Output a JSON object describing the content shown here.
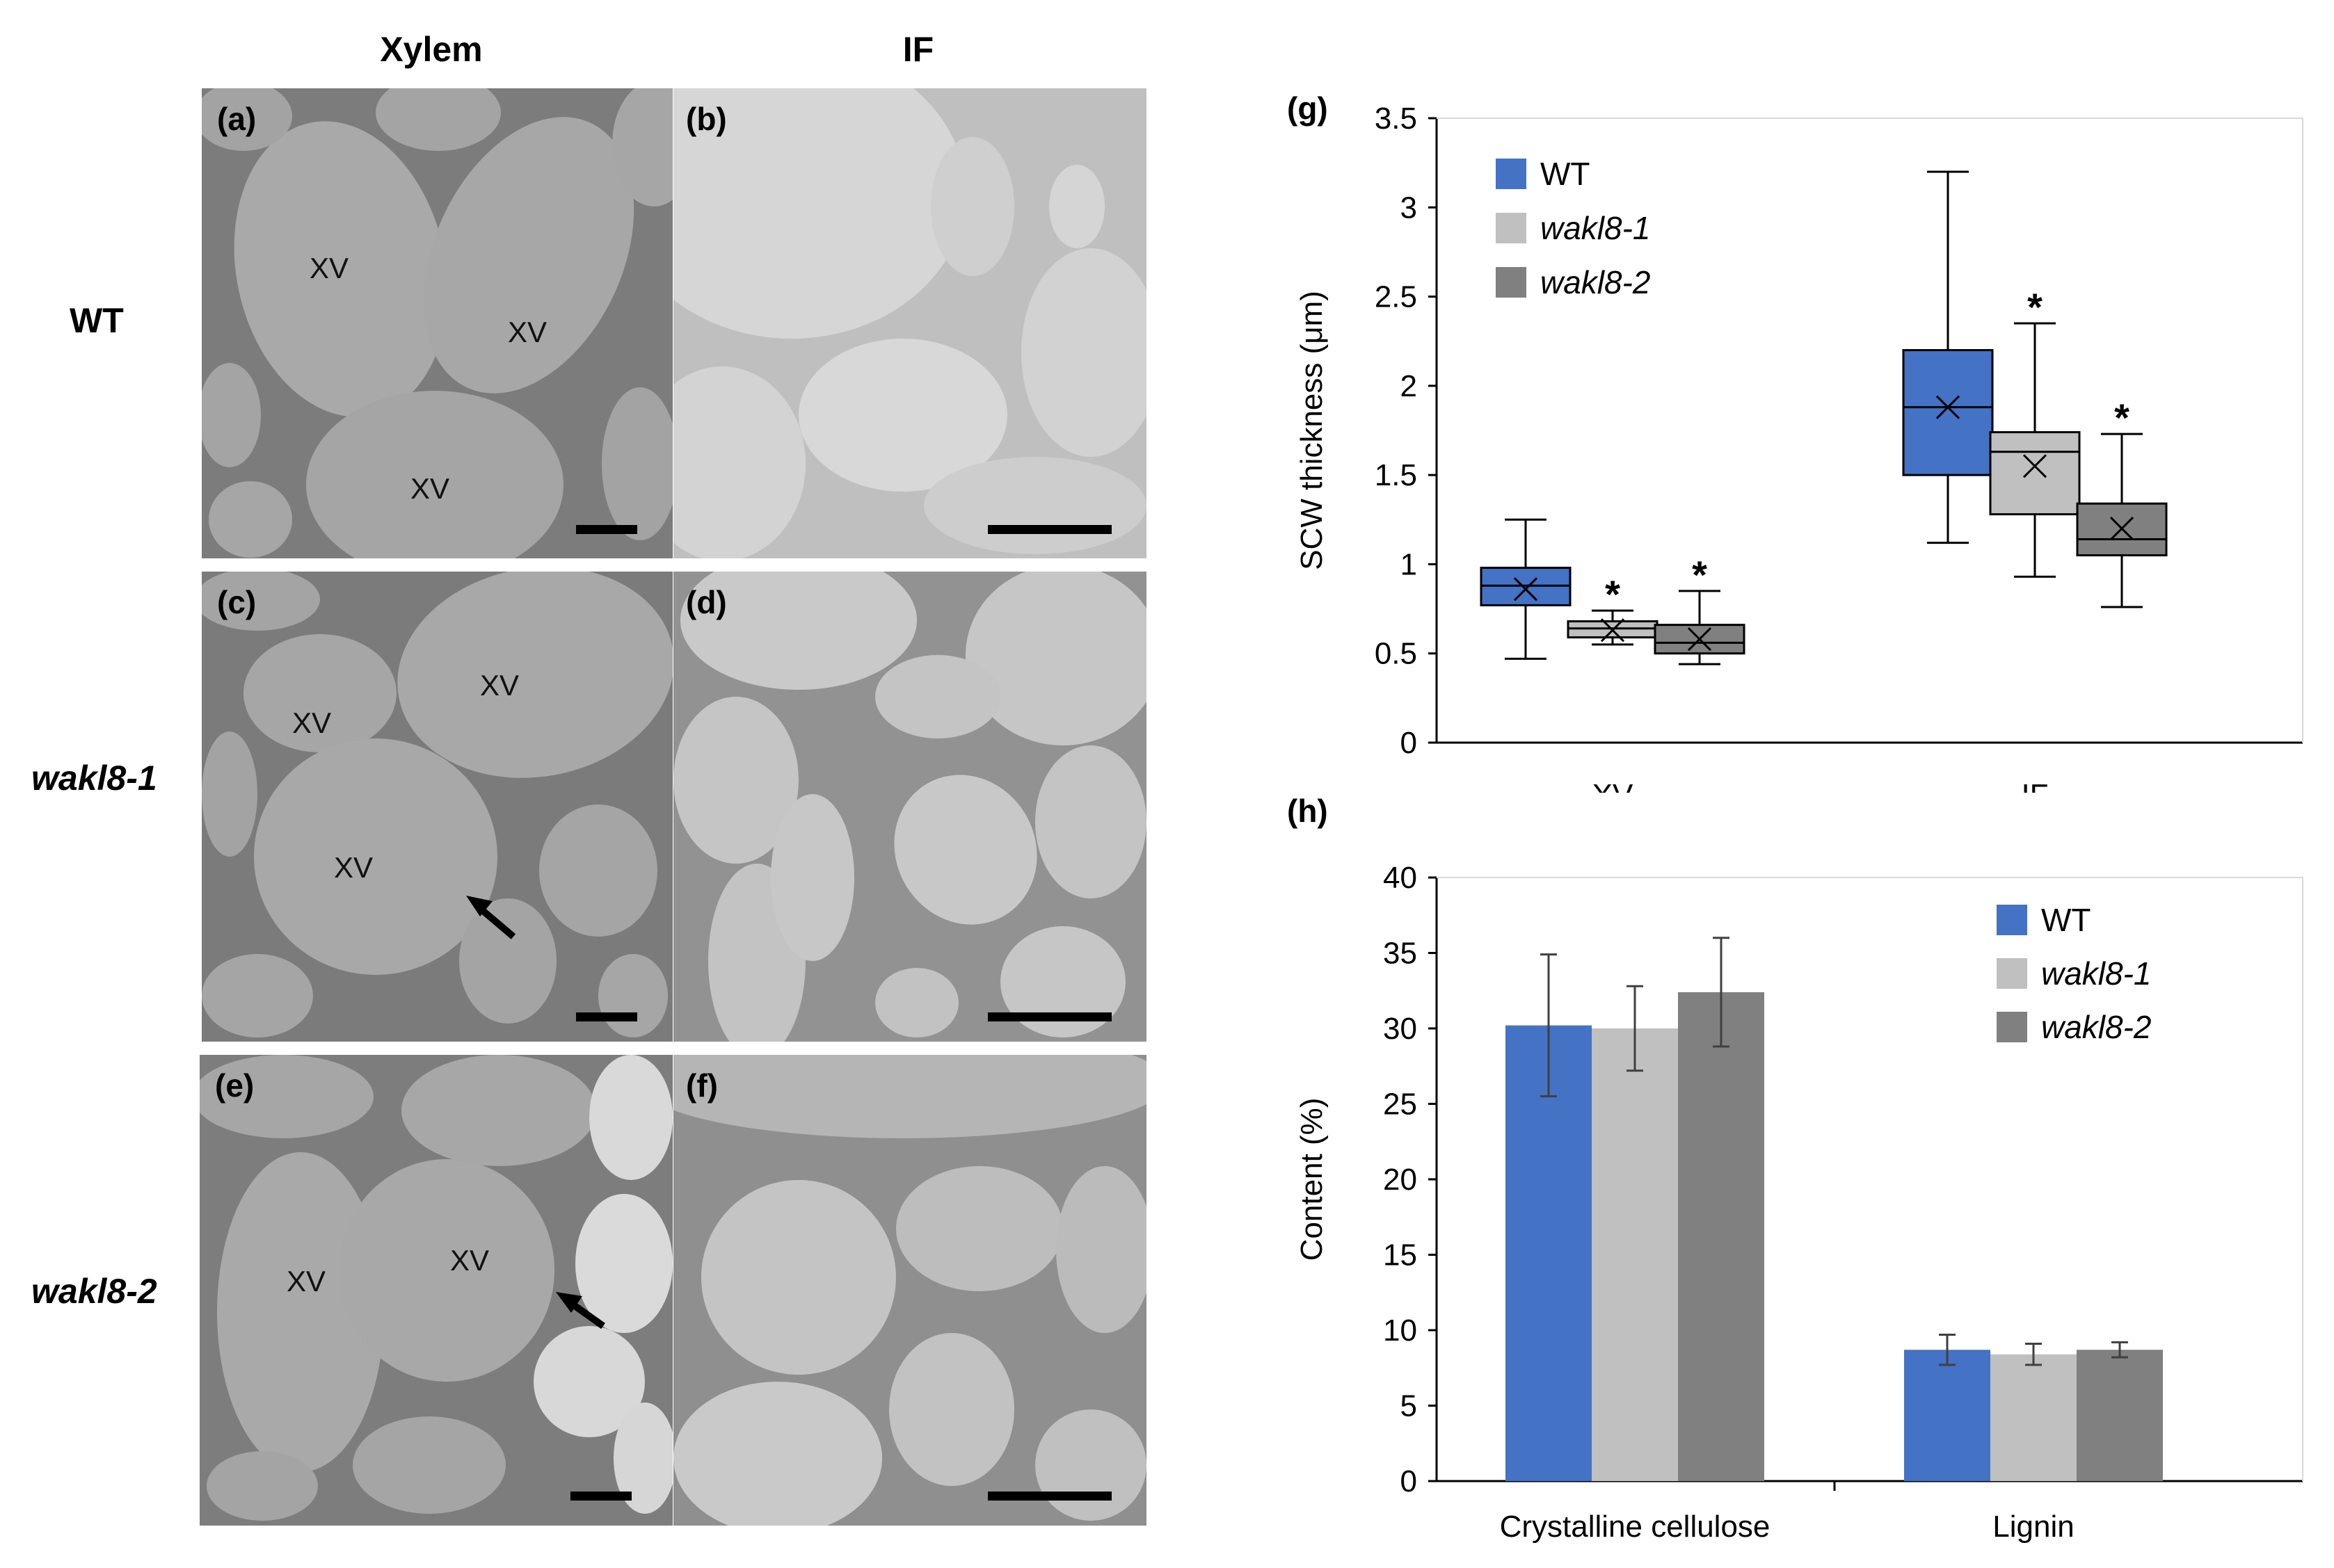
{
  "micrographs": {
    "column_headers": [
      "Xylem",
      "IF"
    ],
    "row_labels": [
      "WT",
      "wakl8-1",
      "wakl8-2"
    ],
    "panels": [
      {
        "label": "(a)",
        "annotations": [
          "XV",
          "XV",
          "XV"
        ]
      },
      {
        "label": "(b)",
        "annotations": []
      },
      {
        "label": "(c)",
        "annotations": [
          "XV",
          "XV",
          "XV"
        ]
      },
      {
        "label": "(d)",
        "annotations": []
      },
      {
        "label": "(e)",
        "annotations": [
          "XV",
          "XV"
        ]
      },
      {
        "label": "(f)",
        "annotations": []
      }
    ]
  },
  "chart_data": [
    {
      "panel": "(g)",
      "type": "box",
      "ylabel": "SCW thickness (μm)",
      "ylim": [
        0,
        3.5
      ],
      "yticks": [
        "0",
        "0.5",
        "1",
        "1.5",
        "2",
        "2.5",
        "3",
        "3.5"
      ],
      "categories": [
        "XV",
        "IF"
      ],
      "legend": {
        "position": "top-left"
      },
      "colors": {
        "WT": "#4472c4",
        "wakl8-1": "#c0c0c0",
        "wakl8-2": "#808080"
      },
      "series": [
        {
          "name": "WT",
          "italic": false,
          "boxes": [
            {
              "category": "XV",
              "min": 0.47,
              "q1": 0.77,
              "median": 0.88,
              "q3": 0.98,
              "max": 1.25,
              "mean": 0.86,
              "sig": ""
            },
            {
              "category": "IF",
              "min": 1.12,
              "q1": 1.5,
              "median": 1.88,
              "q3": 2.2,
              "max": 3.2,
              "mean": 1.88,
              "sig": ""
            }
          ]
        },
        {
          "name": "wakl8-1",
          "italic": true,
          "boxes": [
            {
              "category": "XV",
              "min": 0.55,
              "q1": 0.59,
              "median": 0.64,
              "q3": 0.68,
              "max": 0.74,
              "mean": 0.63,
              "sig": "*"
            },
            {
              "category": "IF",
              "min": 0.93,
              "q1": 1.28,
              "median": 1.63,
              "q3": 1.74,
              "max": 2.35,
              "mean": 1.55,
              "sig": "*"
            }
          ]
        },
        {
          "name": "wakl8-2",
          "italic": true,
          "boxes": [
            {
              "category": "XV",
              "min": 0.44,
              "q1": 0.5,
              "median": 0.56,
              "q3": 0.66,
              "max": 0.85,
              "mean": 0.58,
              "sig": "*"
            },
            {
              "category": "IF",
              "min": 0.76,
              "q1": 1.05,
              "median": 1.14,
              "q3": 1.34,
              "max": 1.73,
              "mean": 1.2,
              "sig": "*"
            }
          ]
        }
      ]
    },
    {
      "panel": "(h)",
      "type": "bar",
      "ylabel": "Content (%)",
      "ylim": [
        0,
        40
      ],
      "yticks": [
        "0",
        "5",
        "10",
        "15",
        "20",
        "25",
        "30",
        "35",
        "40"
      ],
      "categories": [
        "Crystalline cellulose",
        "Lignin"
      ],
      "legend": {
        "position": "top-right"
      },
      "colors": {
        "WT": "#4472c4",
        "wakl8-1": "#c0c0c0",
        "wakl8-2": "#808080"
      },
      "series": [
        {
          "name": "WT",
          "italic": false,
          "values": [
            30.2,
            8.7
          ],
          "errors": [
            4.7,
            1.0
          ]
        },
        {
          "name": "wakl8-1",
          "italic": true,
          "values": [
            30.0,
            8.4
          ],
          "errors": [
            2.8,
            0.7
          ]
        },
        {
          "name": "wakl8-2",
          "italic": true,
          "values": [
            32.4,
            8.7
          ],
          "errors": [
            3.6,
            0.5
          ]
        }
      ]
    }
  ]
}
